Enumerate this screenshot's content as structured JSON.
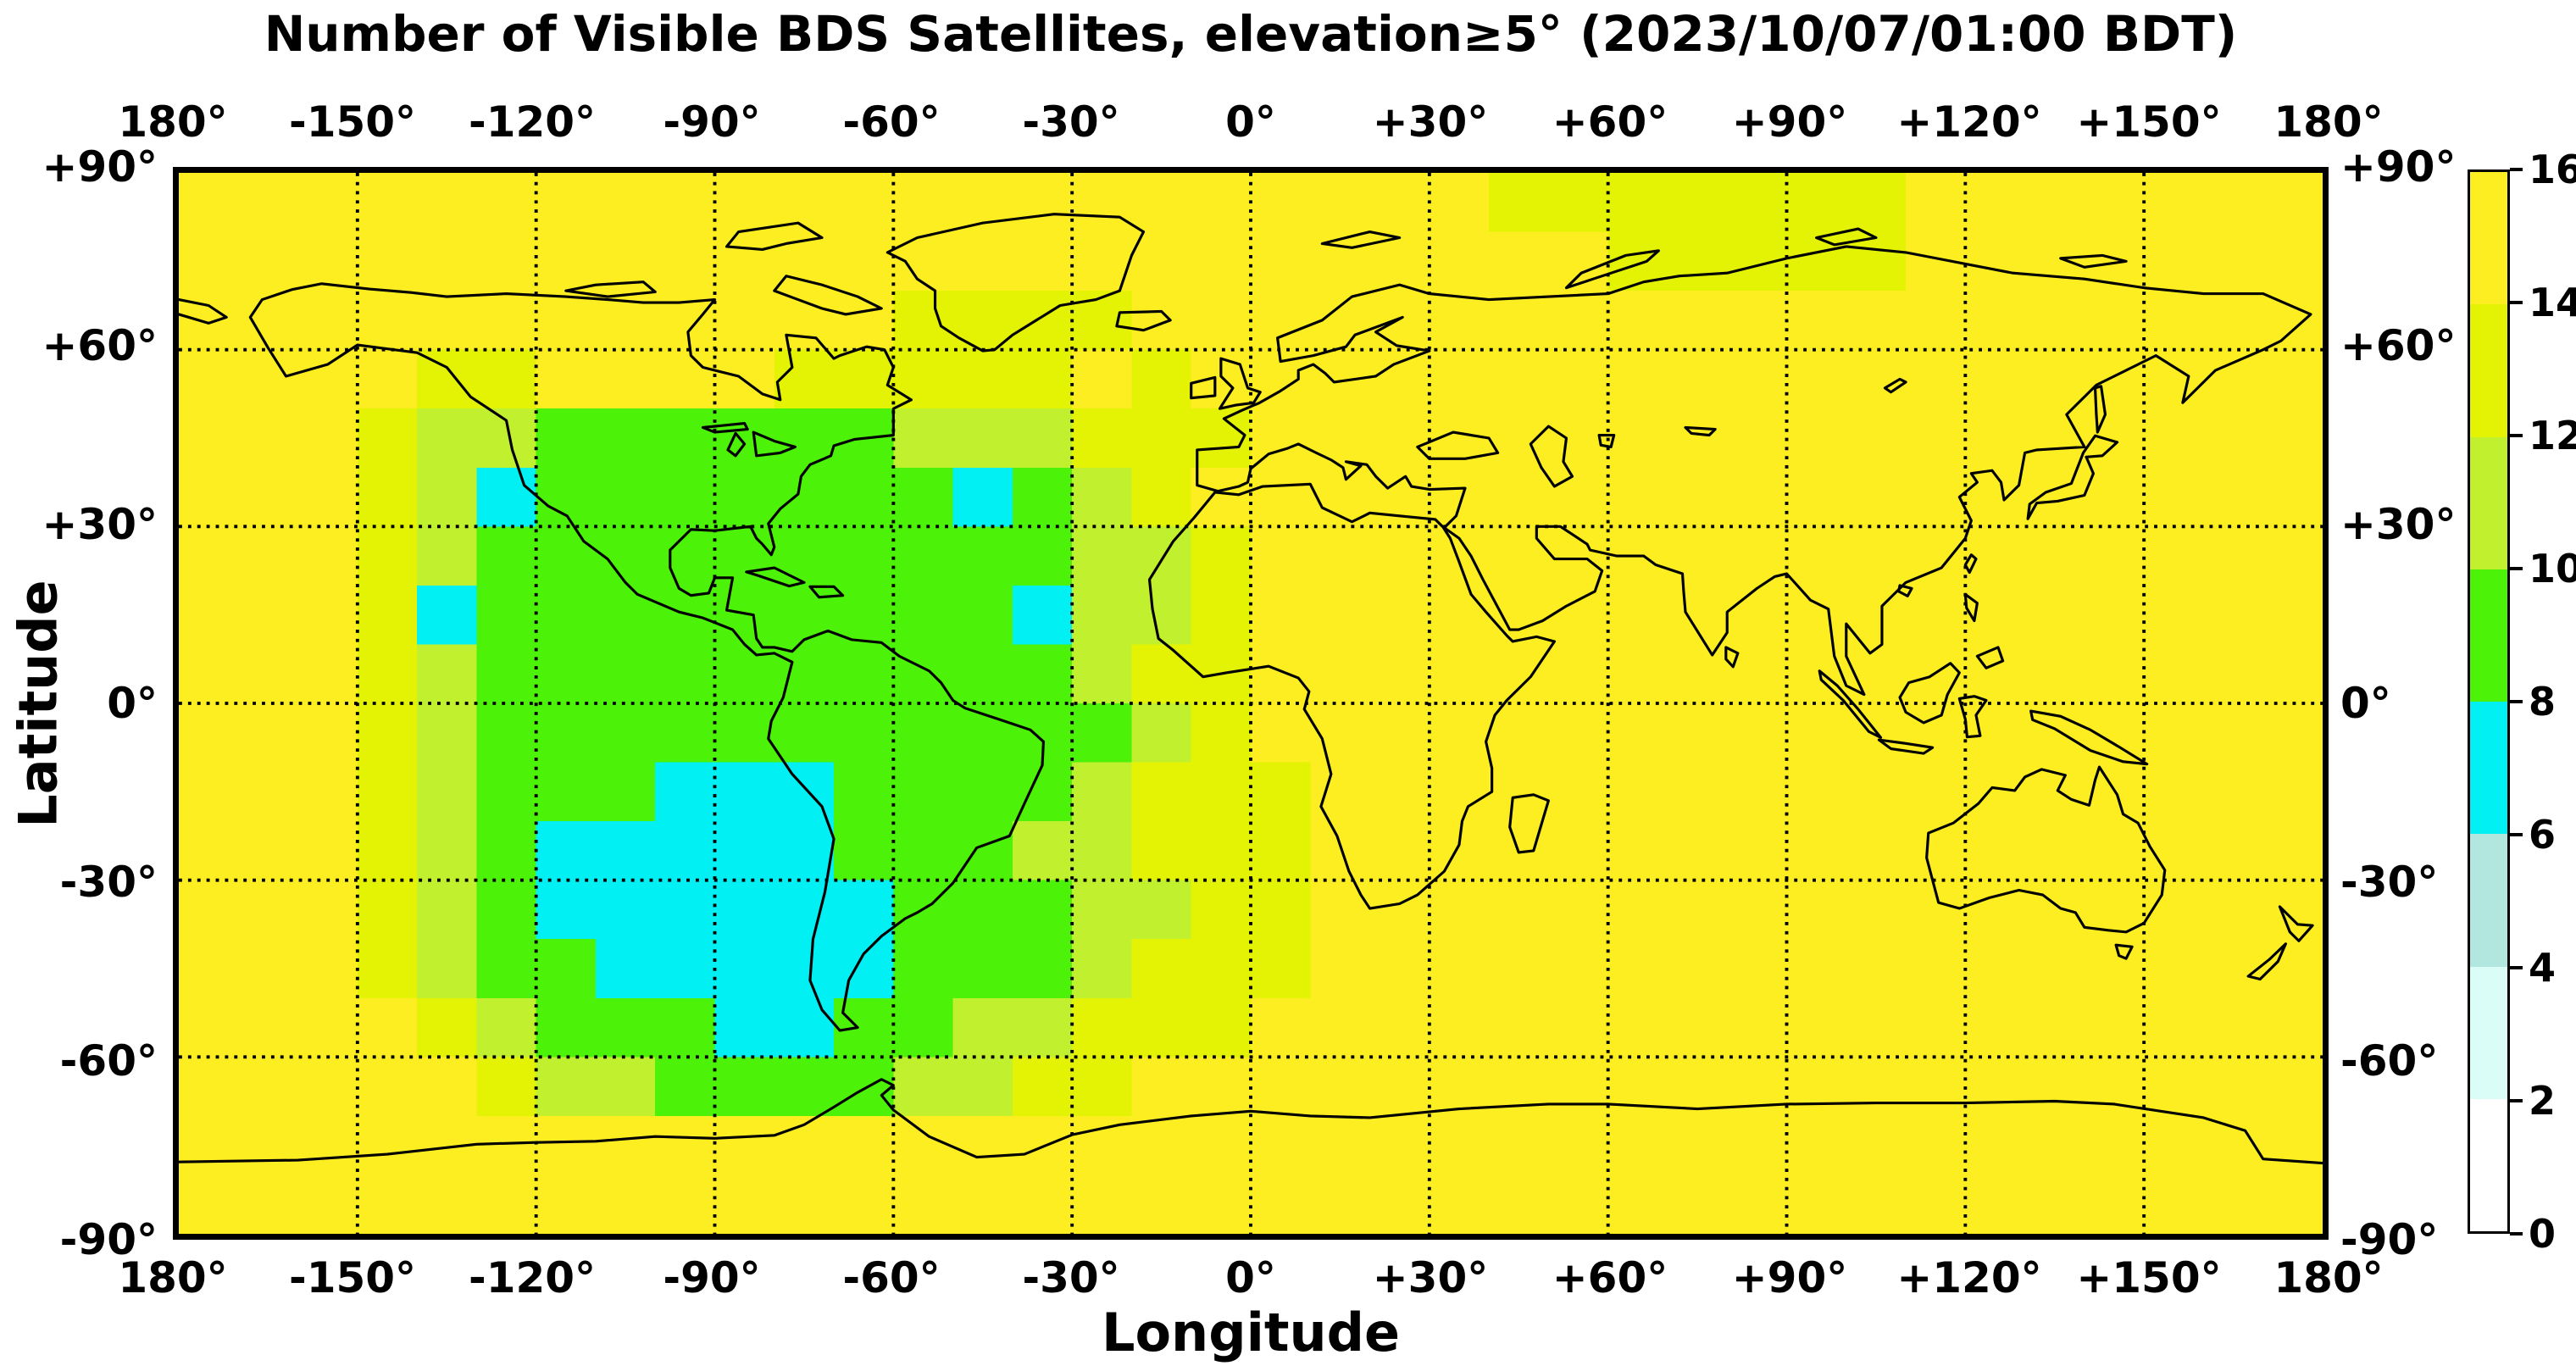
{
  "title": "Number of Visible BDS Satellites, elevation≥5° (2023/10/07/01:00 BDT)",
  "axes": {
    "xlabel": "Longitude",
    "ylabel": "Latitude",
    "lon_ticks": [
      "180°",
      "-150°",
      "-120°",
      "-90°",
      "-60°",
      "-30°",
      "0°",
      "+30°",
      "+60°",
      "+90°",
      "+120°",
      "+150°",
      "180°"
    ],
    "lat_ticks": [
      "+90°",
      "+60°",
      "+30°",
      "0°",
      "-30°",
      "-60°",
      "-90°"
    ]
  },
  "colorbar": {
    "tick_labels": [
      "16",
      "14",
      "12",
      "10",
      "8",
      "6",
      "4",
      "2",
      "0"
    ],
    "range": [
      0,
      16
    ]
  },
  "chart_data": {
    "type": "heatmap",
    "title": "Number of Visible BDS Satellites, elevation≥5° (2023/10/07/01:00 BDT)",
    "xlabel": "Longitude",
    "ylabel": "Latitude",
    "xlim": [
      -180,
      180
    ],
    "ylim": [
      -90,
      90
    ],
    "grid_on": true,
    "grid_step_deg": 30,
    "cell_deg": 10,
    "lat_order": "north-to-south",
    "legend_position": "right-colorbar",
    "color_levels": [
      {
        "min": 14,
        "max": 16,
        "color": "#fdee22"
      },
      {
        "min": 12,
        "max": 14,
        "color": "#e3f303"
      },
      {
        "min": 10,
        "max": 12,
        "color": "#c1f02e"
      },
      {
        "min": 8,
        "max": 10,
        "color": "#4cf207"
      },
      {
        "min": 6,
        "max": 8,
        "color": "#00f0f4"
      },
      {
        "min": 4,
        "max": 6,
        "color": "#b2e7e0"
      },
      {
        "min": 2,
        "max": 4,
        "color": "#dbfdf8"
      },
      {
        "min": 0,
        "max": 2,
        "color": "#ffffff"
      }
    ],
    "values": [
      [
        15,
        15,
        15,
        15,
        15,
        15,
        15,
        15,
        15,
        15,
        15,
        15,
        15,
        15,
        15,
        15,
        15,
        15,
        15,
        15,
        15,
        15,
        13,
        13,
        13,
        13,
        13,
        13,
        13,
        15,
        15,
        15,
        15,
        15,
        15,
        15
      ],
      [
        15,
        15,
        15,
        15,
        15,
        15,
        15,
        15,
        15,
        15,
        15,
        15,
        15,
        15,
        15,
        15,
        15,
        15,
        15,
        15,
        15,
        15,
        15,
        15,
        13,
        13,
        13,
        13,
        13,
        15,
        15,
        15,
        15,
        15,
        15,
        15
      ],
      [
        15,
        15,
        15,
        15,
        15,
        15,
        15,
        15,
        15,
        15,
        15,
        15,
        13,
        13,
        13,
        13,
        15,
        15,
        15,
        15,
        15,
        15,
        15,
        15,
        15,
        15,
        15,
        15,
        15,
        15,
        15,
        15,
        15,
        15,
        15,
        15
      ],
      [
        15,
        15,
        15,
        15,
        13,
        13,
        15,
        15,
        15,
        15,
        13,
        13,
        13,
        13,
        13,
        15,
        13,
        15,
        15,
        15,
        15,
        15,
        15,
        15,
        15,
        15,
        15,
        15,
        15,
        15,
        15,
        15,
        15,
        15,
        15,
        15
      ],
      [
        15,
        15,
        15,
        13,
        11,
        11,
        9,
        9,
        9,
        9,
        9,
        9,
        11,
        11,
        11,
        13,
        13,
        13,
        15,
        15,
        15,
        15,
        15,
        15,
        15,
        15,
        15,
        15,
        15,
        15,
        15,
        15,
        15,
        15,
        15,
        15
      ],
      [
        15,
        15,
        15,
        13,
        11,
        7,
        9,
        9,
        9,
        9,
        9,
        9,
        9,
        7,
        9,
        11,
        13,
        15,
        15,
        15,
        15,
        15,
        15,
        15,
        15,
        15,
        15,
        15,
        15,
        15,
        15,
        15,
        15,
        15,
        15,
        15
      ],
      [
        15,
        15,
        15,
        13,
        11,
        9,
        9,
        9,
        9,
        9,
        9,
        9,
        9,
        9,
        9,
        11,
        11,
        13,
        15,
        15,
        15,
        15,
        15,
        15,
        15,
        15,
        15,
        15,
        15,
        15,
        15,
        15,
        15,
        15,
        15,
        15
      ],
      [
        15,
        15,
        15,
        13,
        7,
        9,
        9,
        9,
        9,
        9,
        9,
        9,
        9,
        9,
        7,
        11,
        11,
        13,
        15,
        15,
        15,
        15,
        15,
        15,
        15,
        15,
        15,
        15,
        15,
        15,
        15,
        15,
        15,
        15,
        15,
        15
      ],
      [
        15,
        15,
        15,
        13,
        11,
        9,
        9,
        9,
        9,
        9,
        9,
        9,
        9,
        9,
        9,
        11,
        13,
        13,
        15,
        15,
        15,
        15,
        15,
        15,
        15,
        15,
        15,
        15,
        15,
        15,
        15,
        15,
        15,
        15,
        15,
        15
      ],
      [
        15,
        15,
        15,
        13,
        11,
        9,
        9,
        9,
        9,
        9,
        9,
        9,
        9,
        9,
        9,
        9,
        11,
        13,
        15,
        15,
        15,
        15,
        15,
        15,
        15,
        15,
        15,
        15,
        15,
        15,
        15,
        15,
        15,
        15,
        15,
        15
      ],
      [
        15,
        15,
        15,
        13,
        11,
        9,
        9,
        9,
        7,
        7,
        7,
        9,
        9,
        9,
        9,
        11,
        13,
        13,
        13,
        15,
        15,
        15,
        15,
        15,
        15,
        15,
        15,
        15,
        15,
        15,
        15,
        15,
        15,
        15,
        15,
        15
      ],
      [
        15,
        15,
        15,
        13,
        11,
        9,
        7,
        7,
        7,
        7,
        7,
        9,
        9,
        9,
        11,
        11,
        13,
        13,
        13,
        15,
        15,
        15,
        15,
        15,
        15,
        15,
        15,
        15,
        15,
        15,
        15,
        15,
        15,
        15,
        15,
        15
      ],
      [
        15,
        15,
        15,
        13,
        11,
        9,
        7,
        7,
        7,
        7,
        7,
        7,
        9,
        9,
        9,
        11,
        11,
        13,
        13,
        15,
        15,
        15,
        15,
        15,
        15,
        15,
        15,
        15,
        15,
        15,
        15,
        15,
        15,
        15,
        15,
        15
      ],
      [
        15,
        15,
        15,
        13,
        11,
        9,
        9,
        7,
        7,
        7,
        7,
        7,
        9,
        9,
        9,
        11,
        13,
        13,
        13,
        15,
        15,
        15,
        15,
        15,
        15,
        15,
        15,
        15,
        15,
        15,
        15,
        15,
        15,
        15,
        15,
        15
      ],
      [
        15,
        15,
        15,
        15,
        13,
        11,
        9,
        9,
        9,
        7,
        7,
        9,
        9,
        11,
        11,
        13,
        13,
        13,
        15,
        15,
        15,
        15,
        15,
        15,
        15,
        15,
        15,
        15,
        15,
        15,
        15,
        15,
        15,
        15,
        15,
        15
      ],
      [
        15,
        15,
        15,
        15,
        15,
        13,
        11,
        11,
        9,
        9,
        9,
        9,
        11,
        11,
        13,
        13,
        15,
        15,
        15,
        15,
        15,
        15,
        15,
        15,
        15,
        15,
        15,
        15,
        15,
        15,
        15,
        15,
        15,
        15,
        15,
        15
      ],
      [
        15,
        15,
        15,
        15,
        15,
        15,
        15,
        15,
        15,
        15,
        15,
        15,
        15,
        15,
        15,
        15,
        15,
        15,
        15,
        15,
        15,
        15,
        15,
        15,
        15,
        15,
        15,
        15,
        15,
        15,
        15,
        15,
        15,
        15,
        15,
        15
      ],
      [
        15,
        15,
        15,
        15,
        15,
        15,
        15,
        15,
        15,
        15,
        15,
        15,
        15,
        15,
        15,
        15,
        15,
        15,
        15,
        15,
        15,
        15,
        15,
        15,
        15,
        15,
        15,
        15,
        15,
        15,
        15,
        15,
        15,
        15,
        15,
        15
      ]
    ]
  }
}
